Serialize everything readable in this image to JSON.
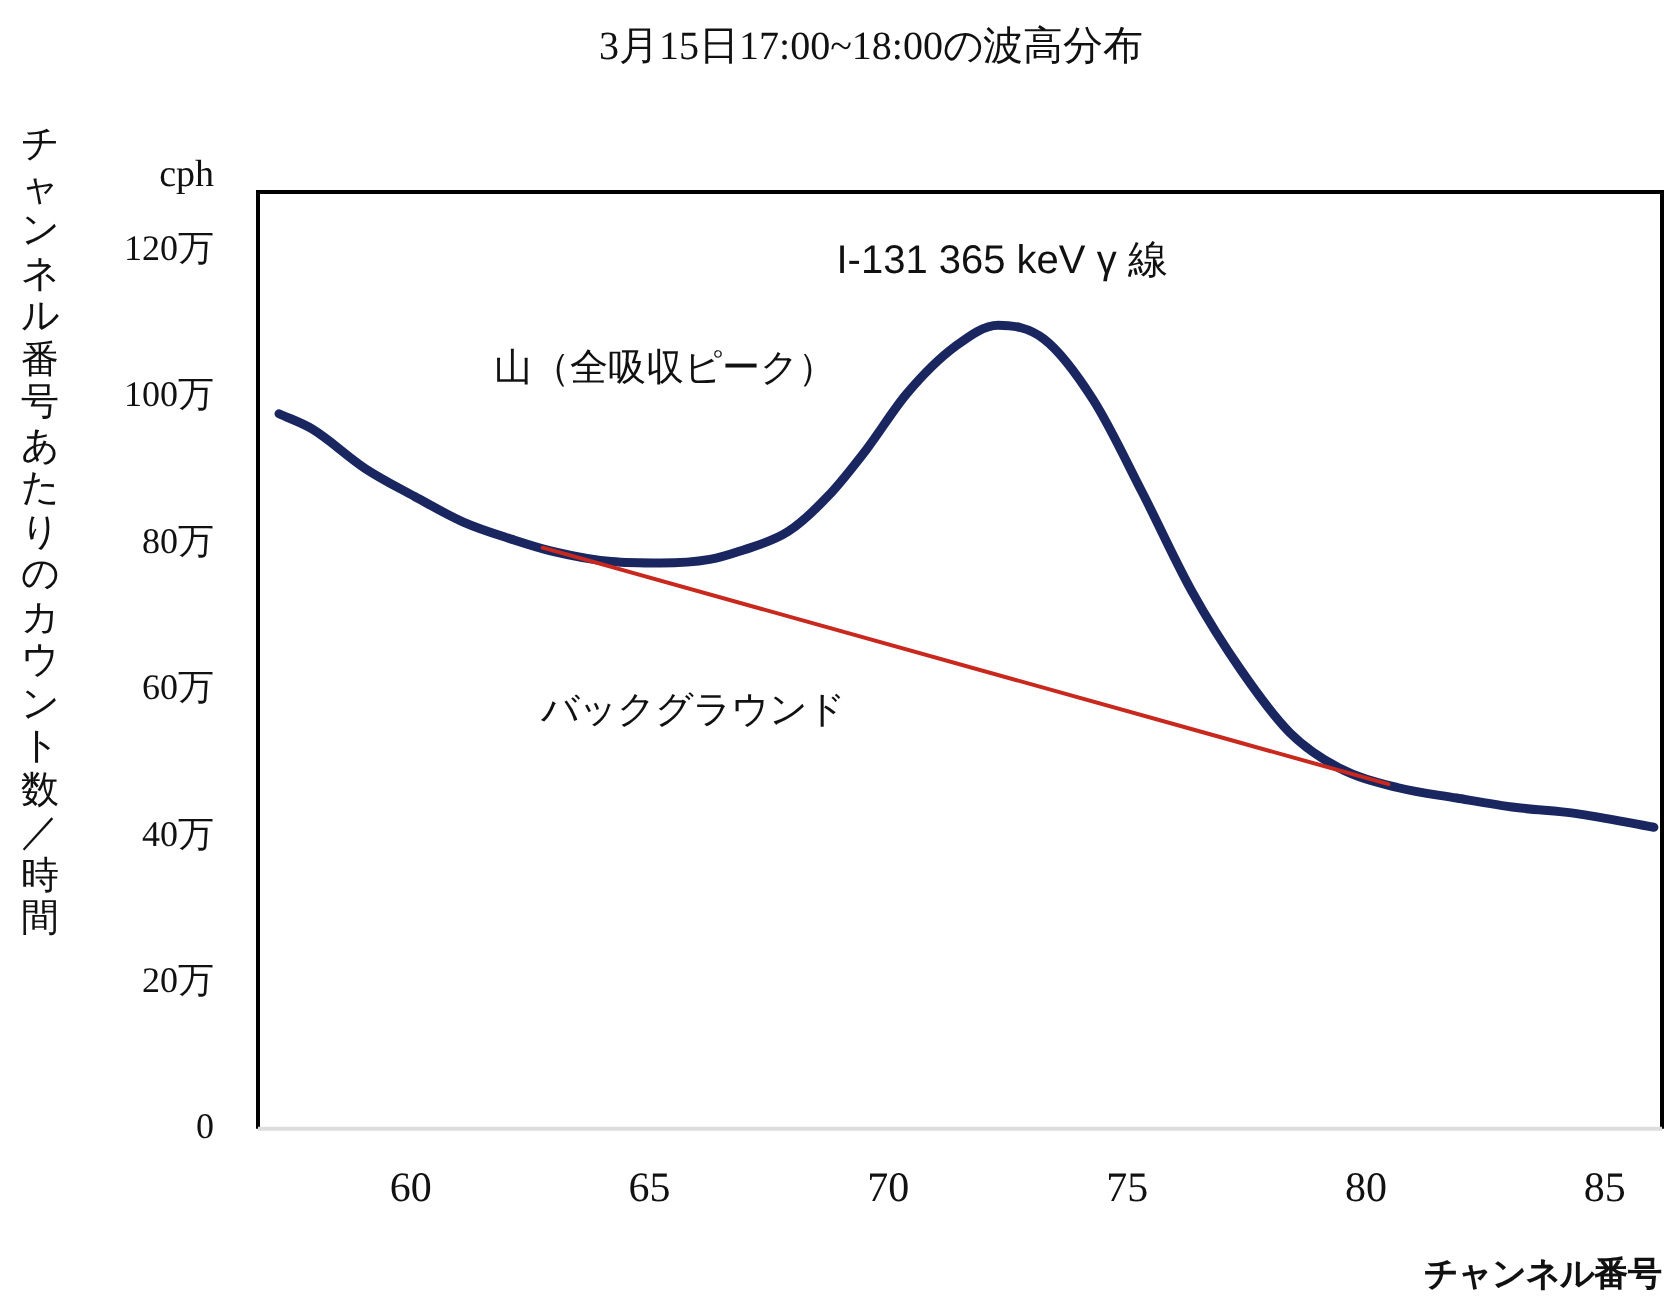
{
  "chart_data": {
    "type": "line",
    "title": "3月15日17:00~18:00の波高分布",
    "xlabel": "チャンネル番号",
    "ylabel": "チャンネル番号あたりのカウント数／時間",
    "annotations": [
      "cph",
      "I-131 365 keV γ 線",
      "山（全吸収ピーク）",
      "バックグラウンド"
    ],
    "xlim": [
      56.8,
      86.2
    ],
    "xticks": [
      60,
      65,
      70,
      75,
      80,
      85
    ],
    "ylim": [
      0,
      128
    ],
    "yticks": [
      0,
      {
        "value": 20,
        "label": "20万"
      },
      {
        "value": 40,
        "label": "40万"
      },
      {
        "value": 60,
        "label": "60万"
      },
      {
        "value": 80,
        "label": "80万"
      },
      {
        "value": 100,
        "label": "100万"
      },
      {
        "value": 120,
        "label": "120万"
      }
    ],
    "grid": false,
    "legend": false,
    "marker": "none",
    "line_style": "solid",
    "series": [
      {
        "color": "#1a2660",
        "x": [
          57.24,
          57.94,
          59.05,
          60.08,
          61.1,
          62.14,
          62.97,
          64.2,
          65.23,
          66.26,
          66.88,
          67.9,
          68.73,
          69.55,
          70.38,
          71.4,
          72.3,
          73.26,
          74.29,
          75.32,
          76.35,
          77.38,
          78.41,
          79.44,
          80.68,
          81.9,
          83.15,
          84.38,
          86.03
        ],
        "values": [
          97.7,
          95.6,
          90.2,
          86.4,
          82.9,
          80.5,
          78.9,
          77.5,
          77.3,
          77.8,
          78.9,
          81.6,
          86.4,
          92.9,
          100.4,
          106.9,
          109.8,
          107.9,
          99.6,
          86.9,
          73.5,
          62.7,
          54.1,
          49.3,
          46.6,
          45.2,
          43.9,
          43.1,
          41.2
        ]
      },
      {
        "color": "#c8281e",
        "x": [
          62.76,
          80.47
        ],
        "values": [
          79.4,
          47.1
        ]
      }
    ]
  }
}
